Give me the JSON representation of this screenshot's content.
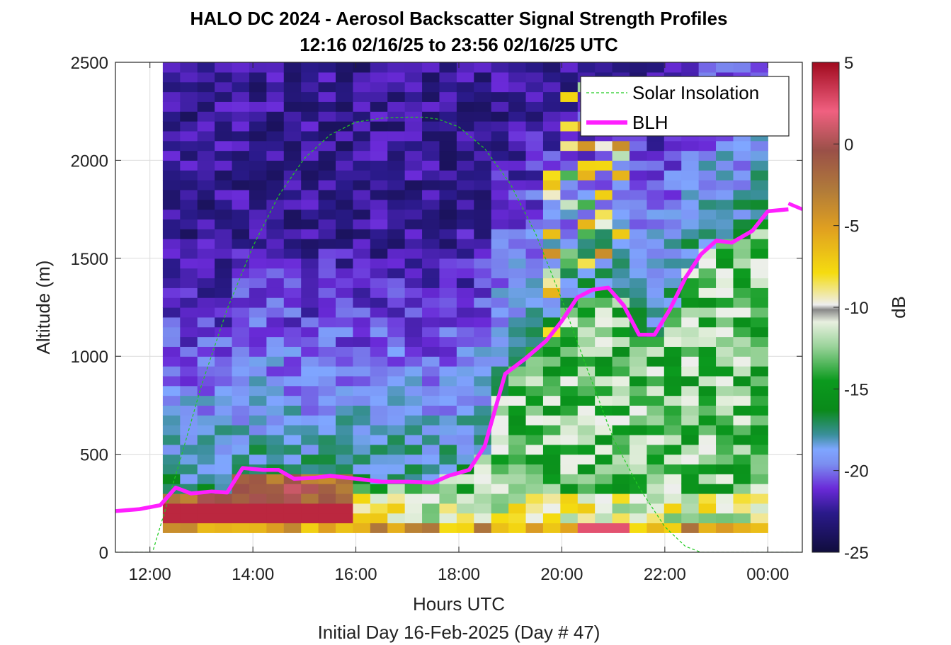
{
  "chart_data": {
    "type": "heatmap",
    "title_line1": "HALO DC 2024 - Aerosol Backscatter Signal Strength Profiles",
    "title_line2": "12:16 02/16/25 to 23:56 02/16/25  UTC",
    "xlabel": "Hours UTC",
    "xlabel2": "Initial Day 16-Feb-2025 (Day # 47)",
    "ylabel": "Altitude (m)",
    "colorbar_label": "dB",
    "xlim": [
      11.33,
      24.67
    ],
    "ylim": [
      0,
      2500
    ],
    "x_ticks": [
      12,
      14,
      16,
      18,
      20,
      22,
      24
    ],
    "x_tick_labels": [
      "12:00",
      "14:00",
      "16:00",
      "18:00",
      "20:00",
      "22:00",
      "00:00"
    ],
    "y_ticks": [
      0,
      500,
      1000,
      1500,
      2000,
      2500
    ],
    "y_tick_labels": [
      "0",
      "500",
      "1000",
      "1500",
      "2000",
      "2500"
    ],
    "clim": [
      -25,
      5
    ],
    "c_ticks": [
      5,
      0,
      -5,
      -10,
      -15,
      -20,
      -25
    ],
    "c_tick_labels": [
      "5",
      "0",
      "-5",
      "-10",
      "-15",
      "-20",
      "-25"
    ],
    "grid": true,
    "legend_placement": "top-right",
    "heatmap_x_range": [
      12.25,
      24.0
    ],
    "heatmap_y_range": [
      100,
      2500
    ],
    "heatmap_columns": 35,
    "heatmap_rows": 48,
    "series": [
      {
        "name": "Solar Insolation",
        "style": "dashed",
        "color": "#22cc22",
        "x": [
          11.33,
          12.05,
          12.6,
          13.0,
          13.5,
          14.0,
          14.5,
          15.0,
          15.5,
          16.0,
          16.5,
          17.0,
          17.3,
          17.6,
          18.0,
          18.5,
          19.0,
          19.5,
          20.0,
          20.5,
          21.0,
          21.5,
          22.0,
          22.4,
          22.7,
          24.67
        ],
        "y": [
          0,
          0,
          480,
          850,
          1240,
          1560,
          1820,
          2010,
          2130,
          2195,
          2215,
          2220,
          2220,
          2210,
          2170,
          2060,
          1880,
          1620,
          1290,
          930,
          580,
          330,
          130,
          30,
          0,
          0
        ]
      },
      {
        "name": "BLH",
        "style": "solid",
        "color": "#ff1fff",
        "x": [
          11.33,
          11.8,
          12.2,
          12.5,
          12.8,
          13.2,
          13.5,
          13.8,
          14.2,
          14.5,
          14.8,
          15.2,
          15.5,
          16.0,
          16.5,
          17.0,
          17.5,
          17.8,
          18.2,
          18.5,
          18.9,
          19.3,
          19.7,
          20.0,
          20.3,
          20.6,
          20.9,
          21.2,
          21.5,
          21.8,
          22.1,
          22.4,
          22.7,
          23.0,
          23.3,
          23.7,
          24.0,
          24.4
        ],
        "y": [
          210,
          220,
          240,
          330,
          300,
          310,
          305,
          430,
          420,
          420,
          375,
          380,
          390,
          375,
          360,
          360,
          355,
          390,
          420,
          540,
          910,
          990,
          1080,
          1180,
          1300,
          1340,
          1350,
          1260,
          1110,
          1110,
          1240,
          1400,
          1520,
          1590,
          1580,
          1640,
          1740,
          1750
        ]
      }
    ],
    "bl_tail": {
      "x": [
        24.4,
        24.67
      ],
      "y": [
        1750,
        1780
      ]
    }
  }
}
